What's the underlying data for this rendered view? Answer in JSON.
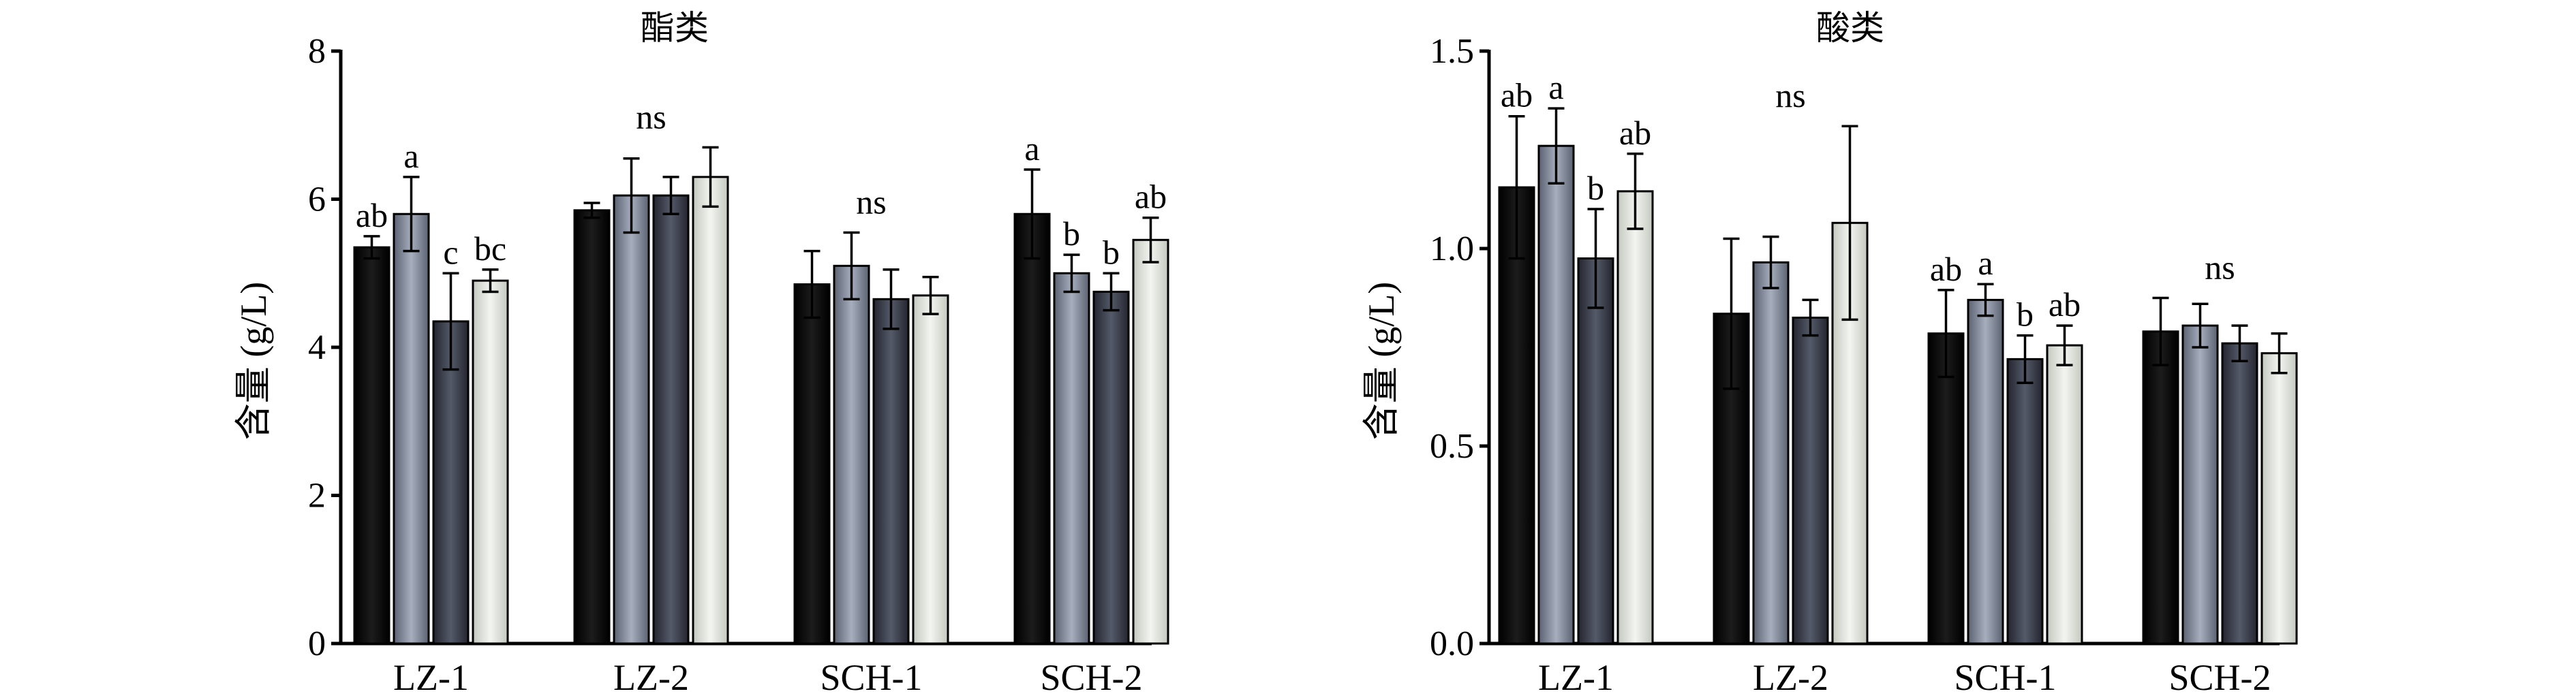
{
  "chart_data": [
    {
      "type": "bar",
      "title": "酯类",
      "ylabel": "含量 (g/L)",
      "xlabel": "",
      "ylim": [
        0,
        8
      ],
      "yticks": [
        "0",
        "2",
        "4",
        "6",
        "8"
      ],
      "categories": [
        "LZ-1",
        "LZ-2",
        "SCH-1",
        "SCH-2"
      ],
      "series": [
        {
          "values": [
            5.35,
            5.85,
            4.85,
            5.8
          ],
          "errors": [
            0.15,
            0.1,
            0.45,
            0.6
          ]
        },
        {
          "values": [
            5.8,
            6.05,
            5.1,
            5.0
          ],
          "errors": [
            0.5,
            0.5,
            0.45,
            0.25
          ]
        },
        {
          "values": [
            4.35,
            6.05,
            4.65,
            4.75
          ],
          "errors": [
            0.65,
            0.25,
            0.4,
            0.25
          ]
        },
        {
          "values": [
            4.9,
            6.3,
            4.7,
            5.45
          ],
          "errors": [
            0.15,
            0.4,
            0.25,
            0.3
          ]
        }
      ],
      "significance": [
        {
          "labels": [
            "ab",
            "a",
            "c",
            "bc"
          ]
        },
        {
          "group": "ns"
        },
        {
          "group": "ns"
        },
        {
          "labels": [
            "a",
            "b",
            "b",
            "ab"
          ]
        }
      ],
      "grid": false,
      "legend": "none",
      "colors": [
        "#0a0a0a",
        "#7c8495",
        "#3b3e4b",
        "#dfe3dc"
      ]
    },
    {
      "type": "bar",
      "title": "酸类",
      "ylabel": "含量 (g/L)",
      "xlabel": "",
      "ylim": [
        0,
        1.5
      ],
      "yticks": [
        "0.0",
        "0.5",
        "1.0",
        "1.5"
      ],
      "categories": [
        "LZ-1",
        "LZ-2",
        "SCH-1",
        "SCH-2"
      ],
      "series": [
        {
          "values": [
            1.155,
            0.835,
            0.785,
            0.79
          ],
          "errors": [
            0.18,
            0.19,
            0.11,
            0.085
          ]
        },
        {
          "values": [
            1.26,
            0.965,
            0.87,
            0.805
          ],
          "errors": [
            0.095,
            0.065,
            0.04,
            0.055
          ]
        },
        {
          "values": [
            0.975,
            0.825,
            0.72,
            0.76
          ],
          "errors": [
            0.125,
            0.045,
            0.06,
            0.045
          ]
        },
        {
          "values": [
            1.145,
            1.065,
            0.755,
            0.735
          ],
          "errors": [
            0.095,
            0.245,
            0.05,
            0.05
          ]
        }
      ],
      "significance": [
        {
          "labels": [
            "ab",
            "a",
            "b",
            "ab"
          ]
        },
        {
          "group": "ns"
        },
        {
          "labels": [
            "ab",
            "a",
            "b",
            "ab"
          ]
        },
        {
          "group": "ns"
        }
      ],
      "grid": false,
      "legend": "none",
      "colors": [
        "#0a0a0a",
        "#7c8495",
        "#3b3e4b",
        "#dfe3dc"
      ]
    }
  ]
}
